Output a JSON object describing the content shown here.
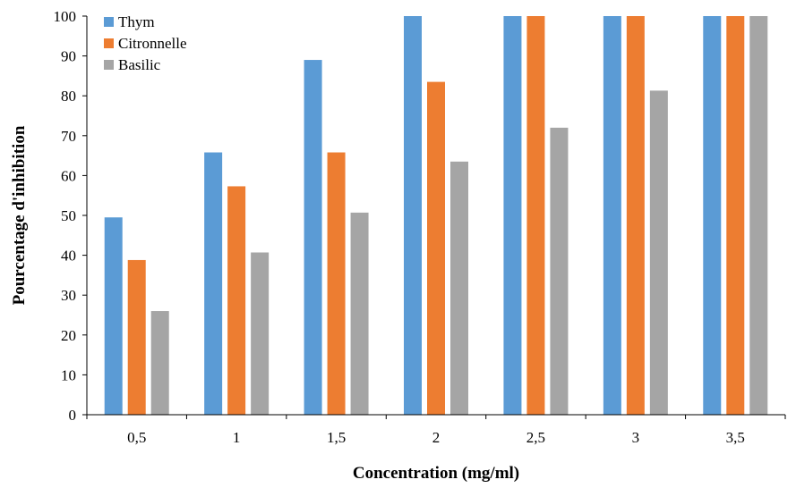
{
  "chart_data": {
    "type": "bar",
    "xlabel": "Concentration (mg/ml)",
    "ylabel": "Pourcentage d'inhibition",
    "categories": [
      "0,5",
      "1",
      "1,5",
      "2",
      "2,5",
      "3",
      "3,5"
    ],
    "ylim": [
      0,
      100
    ],
    "yticks": [
      0,
      10,
      20,
      30,
      40,
      50,
      60,
      70,
      80,
      90,
      100
    ],
    "grid": false,
    "legend_position": "top-left",
    "series": [
      {
        "name": "Thym",
        "color": "#5B9BD5",
        "values": [
          49.5,
          65.8,
          89,
          100,
          100,
          100,
          100
        ]
      },
      {
        "name": "Citronnelle",
        "color": "#ED7D31",
        "values": [
          38.8,
          57.3,
          65.8,
          83.5,
          100,
          100,
          100
        ]
      },
      {
        "name": "Basilic",
        "color": "#A5A5A5",
        "values": [
          26,
          40.7,
          50.7,
          63.5,
          72,
          81.3,
          100
        ]
      }
    ]
  }
}
